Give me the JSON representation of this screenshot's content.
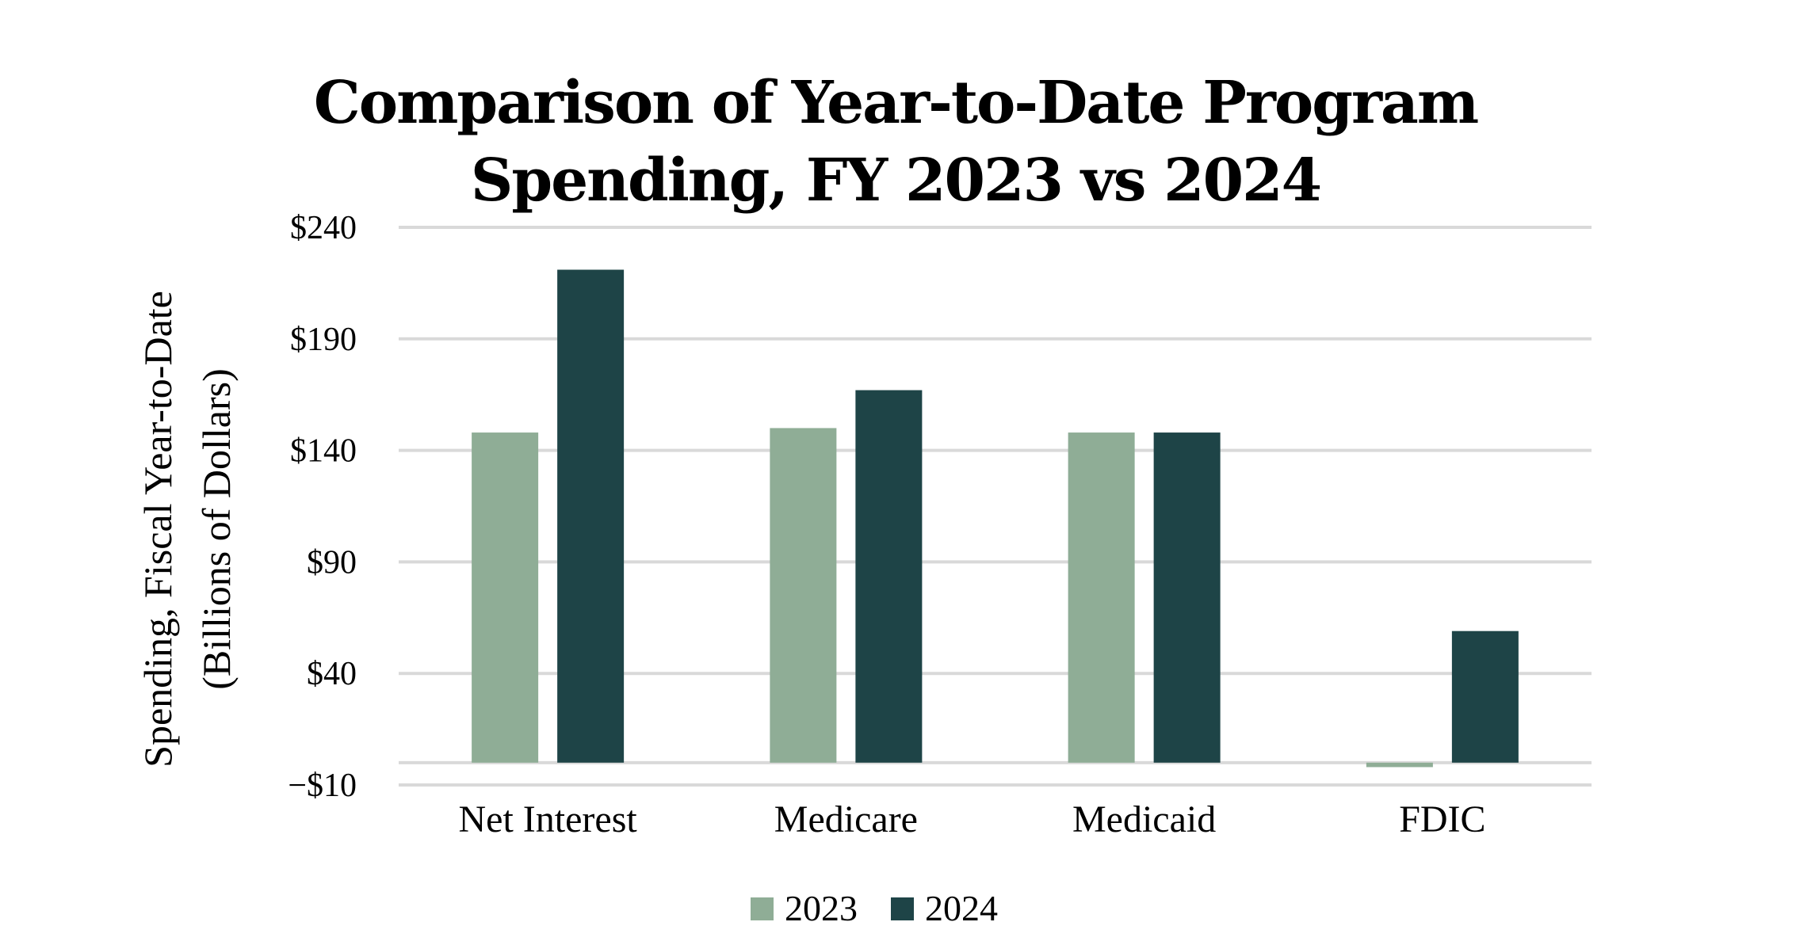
{
  "chart_data": {
    "type": "bar",
    "title": [
      "Comparison of Year-to-Date Program",
      "Spending, FY 2023 vs 2024"
    ],
    "ylabel": [
      "Spending, Fiscal Year-to-Date",
      "(Billions of Dollars)"
    ],
    "xlabel": "",
    "categories": [
      "Net Interest",
      "Medicare",
      "Medicaid",
      "FDIC"
    ],
    "series": [
      {
        "name": "2023",
        "color": "#8fad96",
        "values": [
          148,
          150,
          148,
          -2
        ]
      },
      {
        "name": "2024",
        "color": "#1e4447",
        "values": [
          221,
          167,
          148,
          59
        ]
      }
    ],
    "ylim": [
      -10,
      240
    ],
    "yticks": [
      -10,
      40,
      90,
      140,
      190,
      240
    ],
    "ytick_labels": [
      "−$10",
      "$40",
      "$90",
      "$140",
      "$190",
      "$240"
    ],
    "grid": true,
    "zero_line": true,
    "legend": {
      "position": "bottom",
      "entries": [
        "2023",
        "2024"
      ]
    }
  }
}
